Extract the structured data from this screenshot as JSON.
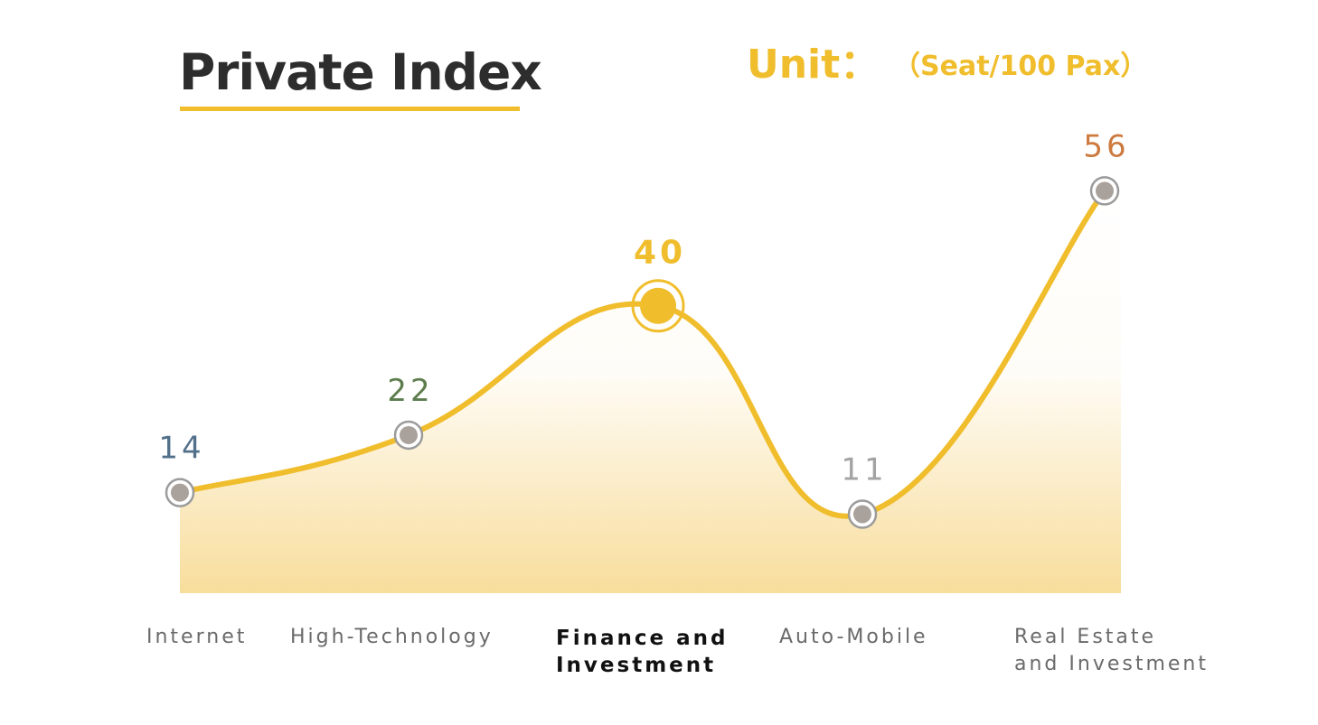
{
  "chart_data": {
    "type": "area",
    "title": "Private Index",
    "unit_label": "Unit：",
    "unit_value": "（Seat/100 Pax）",
    "categories": [
      "Internet",
      "High-Technology",
      "Finance and\nInvestment",
      "Auto-Mobile",
      "Real Estate\nand Investment"
    ],
    "values": [
      14,
      22,
      40,
      11,
      56
    ],
    "value_labels": [
      "14",
      "22",
      "40",
      "11",
      "56"
    ],
    "highlight_index": 2,
    "ylim": [
      0,
      70
    ],
    "grid": false,
    "legend": "none"
  },
  "colors": {
    "line": "#f0bd2c",
    "area_fill": "#f6d27a",
    "point_fill": "#a9a19b",
    "point_ring": "#9b9b9b",
    "label_colors": [
      "#52708a",
      "#5e7d4e",
      "#f0bd2c",
      "#a3a3a3",
      "#cc7a3e"
    ]
  }
}
